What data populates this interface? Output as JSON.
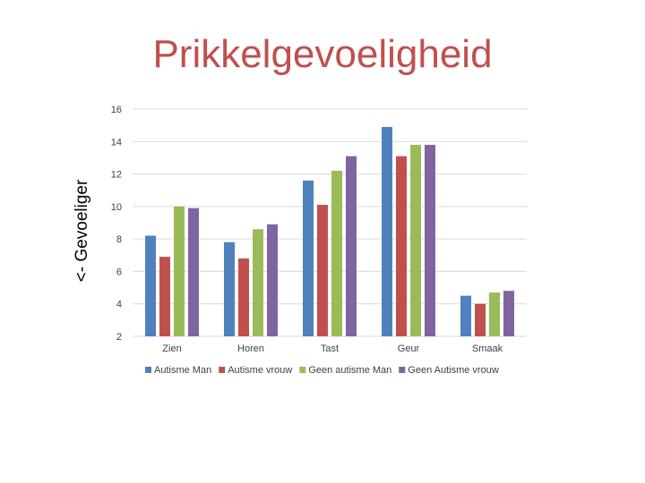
{
  "chart_data": {
    "type": "bar",
    "title": "Prikkelgevoeligheid",
    "ylabel": "<- Gevoeliger",
    "xlabel": "",
    "categories": [
      "Zien",
      "Horen",
      "Tast",
      "Geur",
      "Smaak"
    ],
    "series": [
      {
        "name": "Autisme Man",
        "color": "#4F81BD",
        "values": [
          8.2,
          7.8,
          11.6,
          14.9,
          4.5
        ]
      },
      {
        "name": "Autisme vrouw",
        "color": "#C0504D",
        "values": [
          6.9,
          6.8,
          10.1,
          13.1,
          4.0
        ]
      },
      {
        "name": "Geen autisme Man",
        "color": "#9BBB59",
        "values": [
          10.0,
          8.6,
          12.2,
          13.8,
          4.7
        ]
      },
      {
        "name": "Geen Autisme vrouw",
        "color": "#8064A2",
        "values": [
          9.9,
          8.9,
          13.1,
          13.8,
          4.8
        ]
      }
    ],
    "ylim": [
      2,
      16
    ],
    "yticks": [
      16,
      14,
      12,
      10,
      8,
      6,
      4,
      2
    ],
    "grid": true,
    "legend": "bottom"
  }
}
